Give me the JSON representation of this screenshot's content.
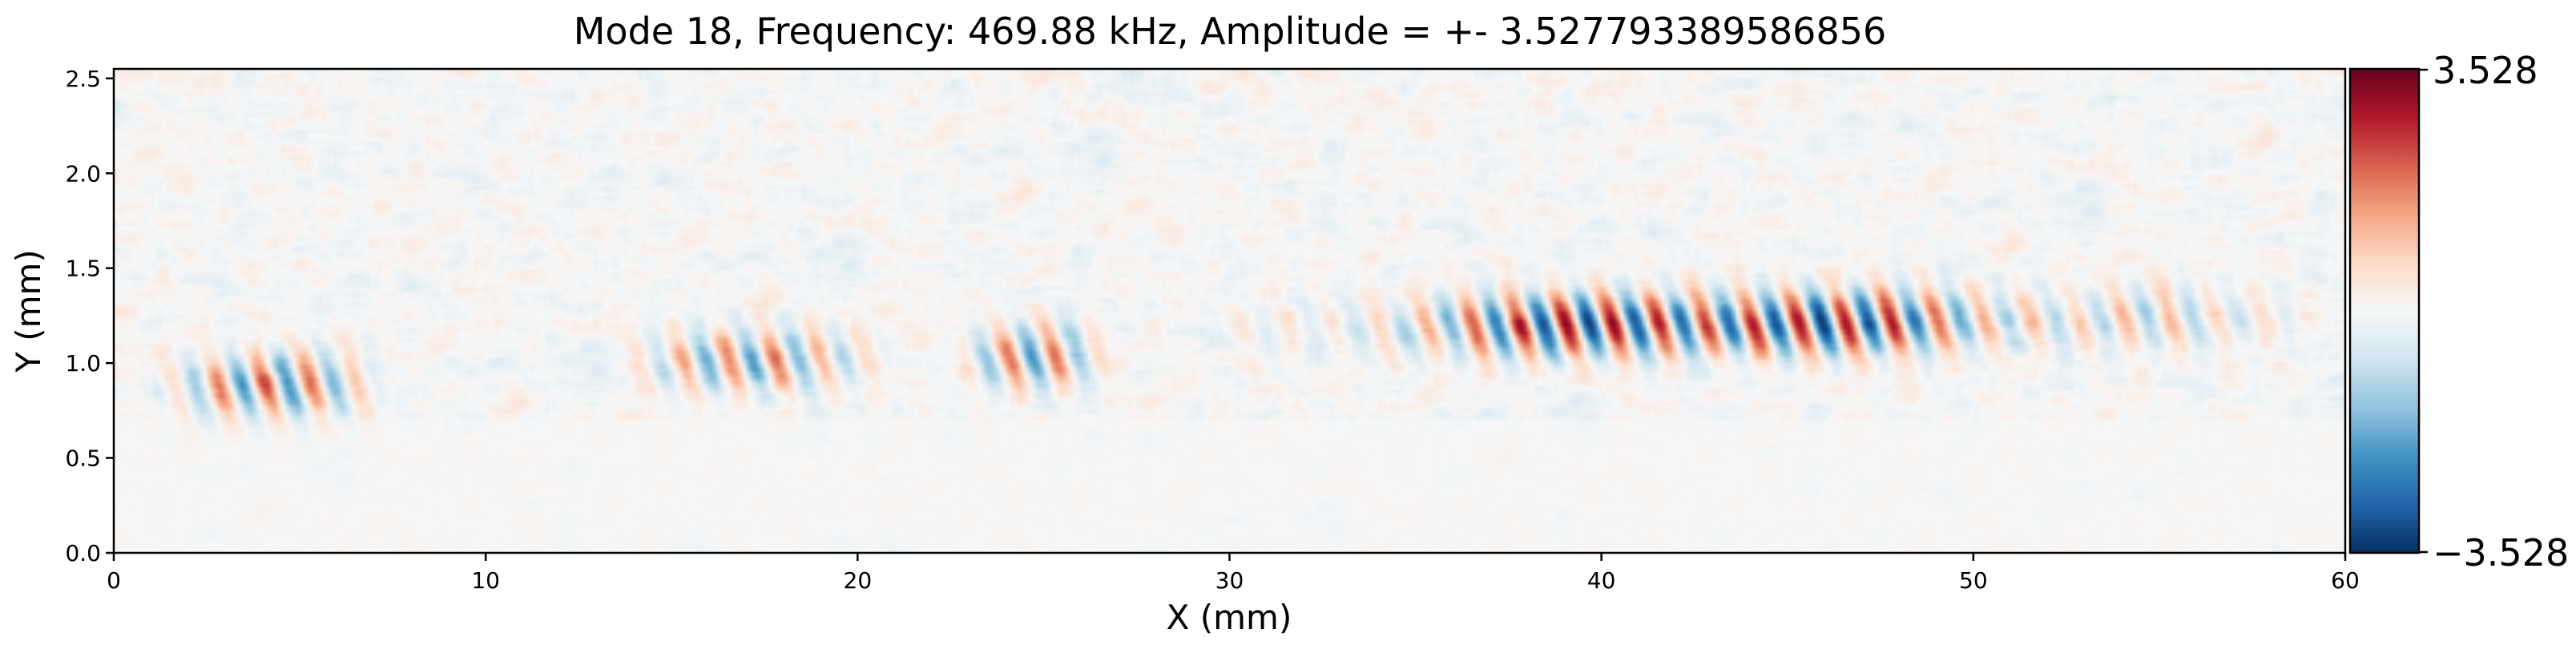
{
  "chart_data": {
    "type": "heatmap",
    "title": "Mode 18, Frequency: 469.88 kHz, Amplitude = +- 3.527793389586856",
    "xlabel": "X (mm)",
    "ylabel": "Y (mm)",
    "xlim": [
      0,
      60
    ],
    "ylim": [
      0,
      2.55
    ],
    "x_ticks": [
      0,
      10,
      20,
      30,
      40,
      50,
      60
    ],
    "y_ticks": [
      0.0,
      0.5,
      1.0,
      1.5,
      2.0,
      2.5
    ],
    "x_tick_labels": [
      "0",
      "10",
      "20",
      "30",
      "40",
      "50",
      "60"
    ],
    "y_tick_labels": [
      "0.0",
      "0.5",
      "1.0",
      "1.5",
      "2.0",
      "2.5"
    ],
    "colormap": "RdBu_r",
    "colorbar": {
      "min": -3.528,
      "max": 3.528,
      "min_label": "−3.528",
      "max_label": "3.528"
    },
    "amplitude": 3.527793389586856,
    "wave_band": {
      "description_free": true,
      "segments": [
        {
          "x_start": 1.0,
          "x_end": 7.5,
          "y_center": 0.88,
          "peak": 0.65
        },
        {
          "x_start": 13.5,
          "x_end": 21.0,
          "y_center": 1.0,
          "peak": 0.55
        },
        {
          "x_start": 22.5,
          "x_end": 27.0,
          "y_center": 1.03,
          "peak": 0.6
        },
        {
          "x_start": 29.5,
          "x_end": 60.0,
          "y_center": 1.18,
          "peak": 1.0
        }
      ],
      "max_location_x": 41.2,
      "max_location_y": 1.2
    },
    "colors": {
      "dark_red": "#67001f",
      "red": "#b2182b",
      "light_red": "#f4a582",
      "white": "#f7f7f7",
      "light_blue": "#92c5de",
      "blue": "#2166ac",
      "dark_blue": "#053061"
    }
  }
}
